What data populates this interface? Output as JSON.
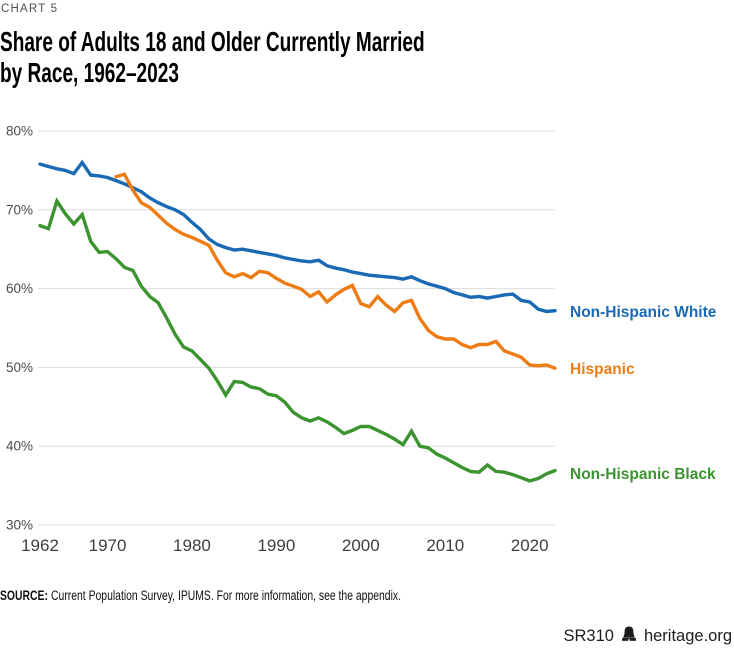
{
  "header": {
    "eyebrow": "CHART 5",
    "title_line1": "Share of Adults 18 and Older Currently Married",
    "title_line2": "by Race, 1962–2023"
  },
  "chart_data": {
    "type": "line",
    "title": "Share of Adults 18 and Older Currently Married by Race, 1962–2023",
    "xlabel": "",
    "ylabel": "",
    "grid": "horizontal",
    "legend_position": "right-of-line-end",
    "ylim": [
      30,
      80
    ],
    "yticks": [
      80,
      70,
      60,
      50,
      40,
      30
    ],
    "ytick_suffix": "%",
    "xticks": [
      1962,
      1970,
      1980,
      1990,
      2000,
      2010,
      2020
    ],
    "x": [
      1962,
      1963,
      1964,
      1965,
      1966,
      1967,
      1968,
      1969,
      1970,
      1971,
      1972,
      1973,
      1974,
      1975,
      1976,
      1977,
      1978,
      1979,
      1980,
      1981,
      1982,
      1983,
      1984,
      1985,
      1986,
      1987,
      1988,
      1989,
      1990,
      1991,
      1992,
      1993,
      1994,
      1995,
      1996,
      1997,
      1998,
      1999,
      2000,
      2001,
      2002,
      2003,
      2004,
      2005,
      2006,
      2007,
      2008,
      2009,
      2010,
      2011,
      2012,
      2013,
      2014,
      2015,
      2016,
      2017,
      2018,
      2019,
      2020,
      2021,
      2022,
      2023
    ],
    "series": [
      {
        "name": "Non-Hispanic White",
        "color": "#1a69b5",
        "values": [
          75.8,
          75.5,
          75.2,
          75.0,
          74.6,
          76.0,
          74.4,
          74.3,
          74.1,
          73.7,
          73.3,
          72.8,
          72.3,
          71.5,
          70.9,
          70.4,
          70.0,
          69.4,
          68.4,
          67.5,
          66.3,
          65.6,
          65.2,
          64.9,
          65.0,
          64.8,
          64.6,
          64.4,
          64.2,
          63.9,
          63.7,
          63.5,
          63.4,
          63.6,
          62.9,
          62.6,
          62.4,
          62.1,
          61.9,
          61.7,
          61.6,
          61.5,
          61.4,
          61.2,
          61.5,
          61.0,
          60.6,
          60.3,
          60.0,
          59.5,
          59.2,
          58.9,
          59.0,
          58.8,
          59.0,
          59.2,
          59.3,
          58.5,
          58.3,
          57.4,
          57.1,
          57.2
        ]
      },
      {
        "name": "Hispanic",
        "color": "#ee7c14",
        "values": [
          null,
          null,
          null,
          null,
          null,
          null,
          null,
          null,
          null,
          74.2,
          74.5,
          72.5,
          70.9,
          70.3,
          69.3,
          68.3,
          67.5,
          66.9,
          66.5,
          66.0,
          65.5,
          63.6,
          62.0,
          61.5,
          61.9,
          61.4,
          62.2,
          62.0,
          61.3,
          60.7,
          60.3,
          59.9,
          59.0,
          59.6,
          58.3,
          59.2,
          59.9,
          60.4,
          58.1,
          57.7,
          59.0,
          57.9,
          57.1,
          58.2,
          58.5,
          56.2,
          54.7,
          53.9,
          53.6,
          53.6,
          52.9,
          52.5,
          52.9,
          52.9,
          53.3,
          52.1,
          51.7,
          51.3,
          50.3,
          50.2,
          50.3,
          49.9
        ]
      },
      {
        "name": "Non-Hispanic Black",
        "color": "#3b9430",
        "values": [
          68.0,
          67.6,
          71.1,
          69.5,
          68.2,
          69.4,
          66.0,
          64.6,
          64.7,
          63.8,
          62.7,
          62.3,
          60.3,
          59.0,
          58.2,
          56.3,
          54.2,
          52.6,
          52.1,
          51.0,
          49.9,
          48.3,
          46.5,
          48.2,
          48.1,
          47.5,
          47.3,
          46.6,
          46.4,
          45.6,
          44.3,
          43.6,
          43.2,
          43.6,
          43.1,
          42.4,
          41.6,
          42.0,
          42.5,
          42.5,
          42.0,
          41.5,
          40.9,
          40.2,
          41.9,
          40.0,
          39.8,
          39.0,
          38.5,
          37.9,
          37.3,
          36.8,
          36.7,
          37.6,
          36.8,
          36.7,
          36.4,
          36.0,
          35.6,
          35.9,
          36.5,
          36.9
        ]
      }
    ]
  },
  "footer": {
    "source_label": "SOURCE:",
    "source_text": "Current Population Survey, IPUMS. For more information, see the appendix.",
    "report_id": "SR310",
    "logo_icon": "liberty-bell-icon",
    "site": "heritage.org"
  },
  "colors": {
    "grid": "#dcdcdc",
    "axis_text": "#4c4c4c",
    "eyebrow_text": "#4e4e4e",
    "title_text": "#000000"
  }
}
